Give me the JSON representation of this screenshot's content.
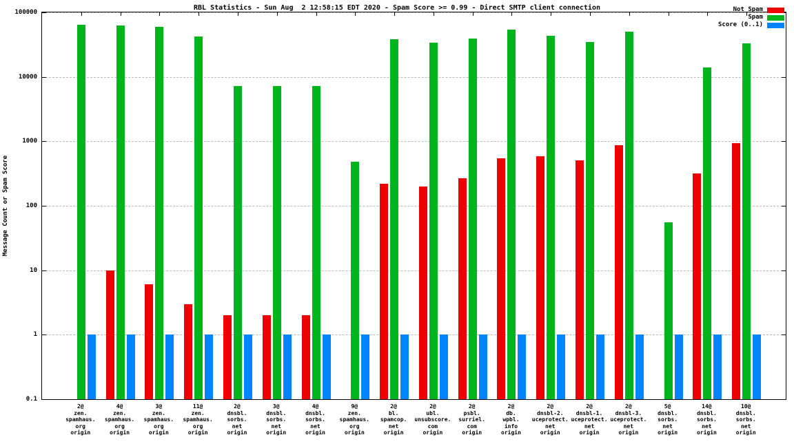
{
  "title": "RBL Statistics - Sun Aug  2 12:58:15 EDT 2020 - Spam Score >= 0.99 - Direct SMTP client connection",
  "colors": {
    "not_spam": "#ee0000",
    "spam": "#00b41e",
    "score": "#0084ff",
    "grid": "#b9b9b9",
    "axis": "#000000",
    "background": "#ffffff"
  },
  "chart_data": {
    "type": "bar",
    "title": "RBL Statistics - Sun Aug  2 12:58:15 EDT 2020 - Spam Score >= 0.99 - Direct SMTP client connection",
    "xlabel": "",
    "ylabel": "Message Count or Spam Score",
    "y_scale": "log",
    "ylim": [
      0.1,
      100000
    ],
    "grid": true,
    "legend_position": "top-right",
    "y_ticks": [
      {
        "value": 0.1,
        "label": "0.1"
      },
      {
        "value": 1,
        "label": "1"
      },
      {
        "value": 10,
        "label": "10"
      },
      {
        "value": 100,
        "label": "100"
      },
      {
        "value": 1000,
        "label": "1000"
      },
      {
        "value": 10000,
        "label": "10000"
      },
      {
        "value": 100000,
        "label": "100000"
      }
    ],
    "categories": [
      [
        "2@",
        "zen.",
        "spamhaus.",
        "org",
        "origin"
      ],
      [
        "4@",
        "zen.",
        "spamhaus.",
        "org",
        "origin"
      ],
      [
        "3@",
        "zen.",
        "spamhaus.",
        "org",
        "origin"
      ],
      [
        "11@",
        "zen.",
        "spamhaus.",
        "org",
        "origin"
      ],
      [
        "2@",
        "dnsbl.",
        "sorbs.",
        "net",
        "origin"
      ],
      [
        "3@",
        "dnsbl.",
        "sorbs.",
        "net",
        "origin"
      ],
      [
        "4@",
        "dnsbl.",
        "sorbs.",
        "net",
        "origin"
      ],
      [
        "9@",
        "zen.",
        "spamhaus.",
        "org",
        "origin"
      ],
      [
        "2@",
        "bl.",
        "spamcop.",
        "net",
        "origin"
      ],
      [
        "2@",
        "ubl.",
        "unsubscore.",
        "com",
        "origin"
      ],
      [
        "2@",
        "psbl.",
        "surriel.",
        "com",
        "origin"
      ],
      [
        "2@",
        "db.",
        "wpbl.",
        "info",
        "origin"
      ],
      [
        "2@",
        "dnsbl-2.",
        "uceprotect.",
        "net",
        "origin"
      ],
      [
        "2@",
        "dnsbl-1.",
        "uceprotect.",
        "net",
        "origin"
      ],
      [
        "2@",
        "dnsbl-3.",
        "uceprotect.",
        "net",
        "origin"
      ],
      [
        "5@",
        "dnsbl.",
        "sorbs.",
        "net",
        "origin"
      ],
      [
        "14@",
        "dnsbl.",
        "sorbs.",
        "net",
        "origin"
      ],
      [
        "10@",
        "dnsbl.",
        "sorbs.",
        "net",
        "origin"
      ]
    ],
    "series": [
      {
        "name": "Not Spam",
        "color_key": "not_spam",
        "values": [
          0,
          10,
          6,
          3,
          2,
          2,
          2,
          0,
          220,
          200,
          270,
          540,
          590,
          510,
          880,
          0,
          320,
          930
        ]
      },
      {
        "name": "Spam",
        "color_key": "spam",
        "values": [
          65000,
          62000,
          60000,
          42000,
          7200,
          7200,
          7200,
          480,
          38000,
          34000,
          39000,
          54000,
          43000,
          35000,
          50000,
          55,
          14000,
          33000
        ]
      },
      {
        "name": "Score (0..1)",
        "color_key": "score",
        "values": [
          1,
          1,
          1,
          1,
          1,
          1,
          1,
          1,
          1,
          1,
          1,
          1,
          1,
          1,
          1,
          1,
          1,
          1
        ]
      }
    ]
  }
}
